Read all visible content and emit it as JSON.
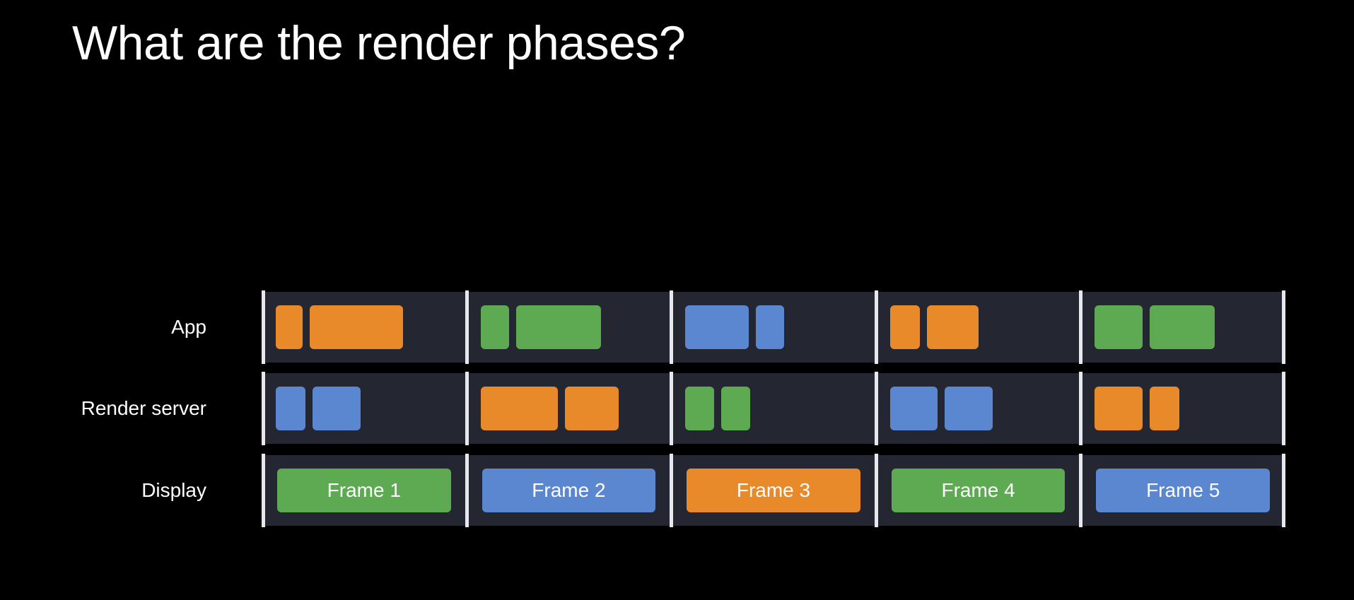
{
  "title": "What are the render phases?",
  "colors": {
    "orange": "#e88a2a",
    "green": "#5daa52",
    "blue": "#5b87d1"
  },
  "rows": [
    {
      "label": "App",
      "segments": [
        {
          "blocks": [
            {
              "color": "orange",
              "weight": 1
            },
            {
              "color": "orange",
              "weight": 3.5
            }
          ]
        },
        {
          "blocks": [
            {
              "color": "green",
              "weight": 1
            },
            {
              "color": "green",
              "weight": 3
            }
          ]
        },
        {
          "blocks": [
            {
              "color": "blue",
              "weight": 2.2
            },
            {
              "color": "blue",
              "weight": 1
            }
          ]
        },
        {
          "blocks": [
            {
              "color": "orange",
              "weight": 1
            },
            {
              "color": "orange",
              "weight": 1.75
            }
          ]
        },
        {
          "blocks": [
            {
              "color": "green",
              "weight": 1.6
            },
            {
              "color": "green",
              "weight": 2.2
            }
          ]
        }
      ]
    },
    {
      "label": "Render server",
      "segments": [
        {
          "blocks": [
            {
              "color": "blue",
              "weight": 1
            },
            {
              "color": "blue",
              "weight": 1.6
            }
          ]
        },
        {
          "blocks": [
            {
              "color": "orange",
              "weight": 1.45
            },
            {
              "color": "orange",
              "weight": 1
            }
          ]
        },
        {
          "blocks": [
            {
              "color": "green",
              "weight": 1
            },
            {
              "color": "green",
              "weight": 1
            }
          ]
        },
        {
          "blocks": [
            {
              "color": "blue",
              "weight": 1.6
            },
            {
              "color": "blue",
              "weight": 1.6
            }
          ]
        },
        {
          "blocks": [
            {
              "color": "orange",
              "weight": 1.6
            },
            {
              "color": "orange",
              "weight": 1
            }
          ]
        }
      ]
    }
  ],
  "display": {
    "label": "Display",
    "frames": [
      {
        "label": "Frame 1",
        "color": "green"
      },
      {
        "label": "Frame 2",
        "color": "blue"
      },
      {
        "label": "Frame 3",
        "color": "orange"
      },
      {
        "label": "Frame 4",
        "color": "green"
      },
      {
        "label": "Frame 5",
        "color": "blue"
      }
    ]
  }
}
